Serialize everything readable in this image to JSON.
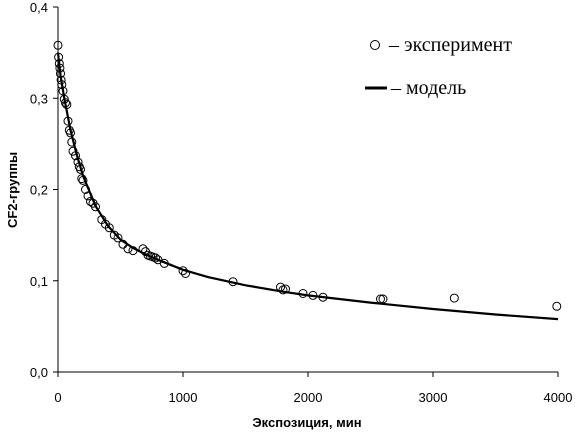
{
  "chart_data": {
    "type": "scatter",
    "title": "",
    "xlabel": "Экспозиция, мин",
    "ylabel": "CF2-группы",
    "xlim": [
      0,
      4000
    ],
    "ylim": [
      0,
      0.4
    ],
    "x_ticks": [
      "0",
      "1000",
      "2000",
      "3000",
      "4000"
    ],
    "y_ticks": [
      "0,0",
      "0,1",
      "0,2",
      "0,3",
      "0,4"
    ],
    "grid": false,
    "legend_position": "top-right",
    "series": [
      {
        "name": "– эксперимент",
        "kind": "scatter",
        "marker": "open-circle",
        "color": "#000000",
        "x": [
          0,
          5,
          10,
          15,
          20,
          25,
          30,
          40,
          50,
          60,
          70,
          80,
          90,
          100,
          110,
          120,
          140,
          160,
          170,
          180,
          190,
          200,
          220,
          240,
          260,
          280,
          300,
          350,
          380,
          410,
          450,
          480,
          520,
          560,
          600,
          680,
          700,
          720,
          740,
          760,
          780,
          800,
          850,
          1000,
          1020,
          1400,
          1780,
          1800,
          1820,
          1960,
          2040,
          2120,
          2580,
          2600,
          3170,
          3990
        ],
        "y": [
          0.358,
          0.345,
          0.338,
          0.333,
          0.327,
          0.32,
          0.315,
          0.308,
          0.299,
          0.295,
          0.293,
          0.275,
          0.265,
          0.262,
          0.252,
          0.242,
          0.237,
          0.23,
          0.225,
          0.222,
          0.212,
          0.21,
          0.2,
          0.193,
          0.187,
          0.185,
          0.181,
          0.167,
          0.162,
          0.158,
          0.15,
          0.147,
          0.14,
          0.135,
          0.133,
          0.135,
          0.132,
          0.128,
          0.127,
          0.126,
          0.125,
          0.123,
          0.119,
          0.111,
          0.108,
          0.099,
          0.093,
          0.09,
          0.091,
          0.086,
          0.084,
          0.082,
          0.08,
          0.08,
          0.081,
          0.072
        ]
      },
      {
        "name": "– модель",
        "kind": "line",
        "color": "#000000",
        "x": [
          0,
          20,
          50,
          100,
          150,
          200,
          300,
          400,
          500,
          600,
          700,
          800,
          1000,
          1200,
          1500,
          1800,
          2000,
          2500,
          3000,
          3500,
          4000
        ],
        "y": [
          0.35,
          0.325,
          0.3,
          0.265,
          0.238,
          0.215,
          0.182,
          0.16,
          0.145,
          0.136,
          0.129,
          0.123,
          0.112,
          0.104,
          0.095,
          0.088,
          0.084,
          0.076,
          0.069,
          0.063,
          0.058
        ]
      }
    ]
  }
}
